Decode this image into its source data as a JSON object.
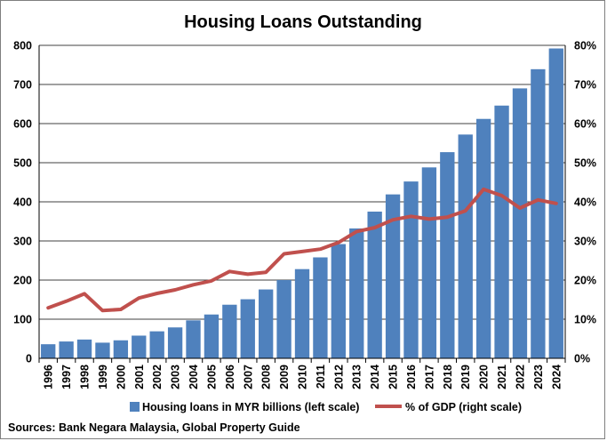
{
  "chart_data": {
    "type": "bar",
    "title": "Housing Loans Outstanding",
    "categories": [
      "1996",
      "1997",
      "1998",
      "1999",
      "2000",
      "2001",
      "2002",
      "2003",
      "2004",
      "2005",
      "2006",
      "2007",
      "2008",
      "2009",
      "2010",
      "2011",
      "2012",
      "2013",
      "2014",
      "2015",
      "2016",
      "2017",
      "2018",
      "2019",
      "2020",
      "2021",
      "2022",
      "2023",
      "2024"
    ],
    "series": [
      {
        "name": "Housing loans in MYR billions (left scale)",
        "type": "bar",
        "axis": "left",
        "color": "#4f81bd",
        "values": [
          36,
          43,
          48,
          40,
          46,
          58,
          69,
          79,
          97,
          112,
          137,
          151,
          176,
          200,
          228,
          258,
          292,
          332,
          375,
          419,
          452,
          488,
          527,
          572,
          612,
          646,
          690,
          739,
          792
        ]
      },
      {
        "name": "% of GDP (right scale)",
        "type": "line",
        "axis": "right",
        "color": "#c0504d",
        "values": [
          12.9,
          14.6,
          16.5,
          12.2,
          12.5,
          15.4,
          16.6,
          17.5,
          18.8,
          19.8,
          22.2,
          21.5,
          22.0,
          26.7,
          27.3,
          27.9,
          29.6,
          32.4,
          33.4,
          35.4,
          36.3,
          35.6,
          36.1,
          37.7,
          43.2,
          41.6,
          38.4,
          40.5,
          39.6
        ]
      }
    ],
    "ylim_left": [
      0,
      800
    ],
    "yticks_left": [
      0,
      100,
      200,
      300,
      400,
      500,
      600,
      700,
      800
    ],
    "ylim_right": [
      0,
      80
    ],
    "yticks_right": [
      "0%",
      "10%",
      "20%",
      "30%",
      "40%",
      "50%",
      "60%",
      "70%",
      "80%"
    ],
    "grid": true,
    "legend_position": "bottom",
    "source": "Sources: Bank Negara Malaysia, Global Property Guide"
  }
}
